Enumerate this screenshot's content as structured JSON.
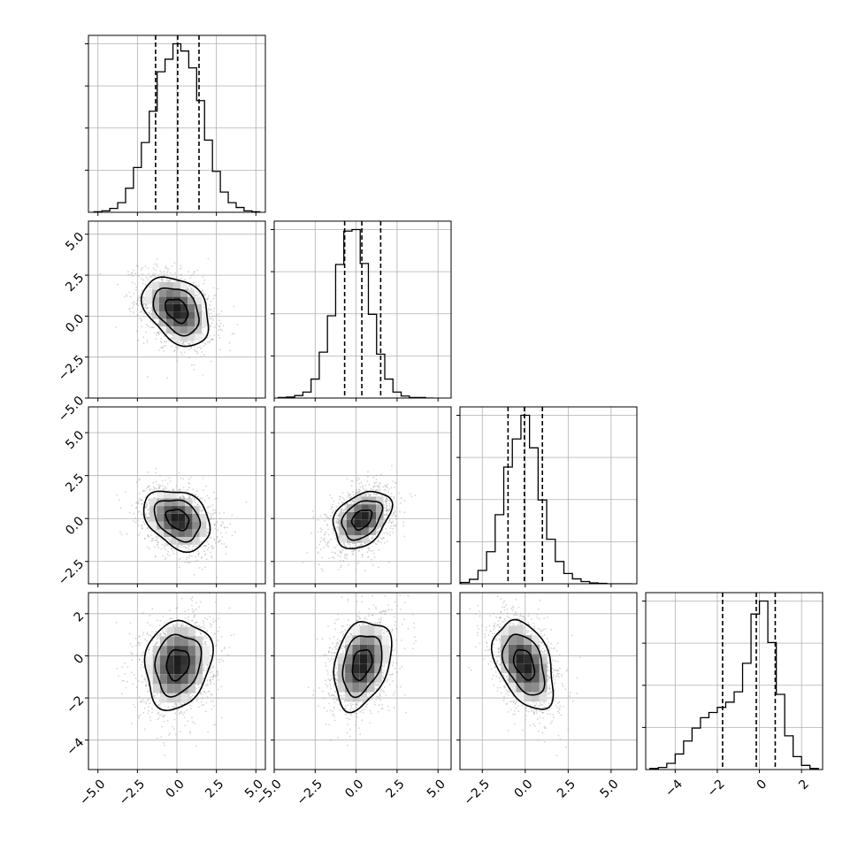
{
  "chart_data": {
    "type": "corner",
    "colors": {
      "axes": "#000000",
      "grid": "#b0b0b0",
      "scatter": "#a0a0a0",
      "density_dark": "#111111",
      "density_light": "#f2f2f2"
    },
    "grid": true,
    "quantile_lines": "dashed",
    "contour_levels": 3,
    "params": [
      {
        "range": [
          -5.6,
          5.6
        ],
        "ticks": [
          -5.0,
          -2.5,
          0.0,
          2.5,
          5.0
        ],
        "tick_labels": [
          "−5.0",
          "−2.5",
          "0.0",
          "2.5",
          "5.0"
        ],
        "quantiles": [
          -1.35,
          0.05,
          1.4
        ],
        "hist_centers": [
          -5.0,
          -4.5,
          -4.0,
          -3.5,
          -3.0,
          -2.5,
          -2.0,
          -1.5,
          -1.0,
          -0.5,
          0.0,
          0.5,
          1.0,
          1.5,
          2.0,
          2.5,
          3.0,
          3.5,
          4.0,
          4.5,
          5.0
        ],
        "hist_values": [
          1,
          3,
          8,
          20,
          50,
          93,
          145,
          210,
          292,
          318,
          350,
          335,
          300,
          232,
          150,
          85,
          42,
          20,
          10,
          3,
          1
        ]
      },
      {
        "range": [
          -5.0,
          5.8
        ],
        "ticks": [
          -5.0,
          -2.5,
          0.0,
          2.5,
          5.0
        ],
        "tick_labels": [
          "−5.0",
          "−2.5",
          "0.0",
          "2.5",
          "5.0"
        ],
        "quantiles": [
          -0.7,
          0.35,
          1.5
        ],
        "hist_centers": [
          -4.5,
          -4.0,
          -3.5,
          -3.0,
          -2.5,
          -2.0,
          -1.5,
          -1.0,
          -0.5,
          0.0,
          0.5,
          1.0,
          1.5,
          2.0,
          2.5,
          3.0,
          3.5,
          4.0,
          4.5
        ],
        "hist_values": [
          1,
          2,
          5,
          12,
          38,
          92,
          165,
          268,
          335,
          338,
          270,
          168,
          88,
          38,
          12,
          4,
          1,
          1,
          0
        ]
      },
      {
        "range": [
          -3.8,
          6.5
        ],
        "ticks": [
          -2.5,
          0.0,
          2.5,
          5.0
        ],
        "tick_labels": [
          "−2.5",
          "0.0",
          "2.5",
          "5.0"
        ],
        "quantiles": [
          -1.0,
          -0.05,
          1.0
        ],
        "hist_centers": [
          -3.5,
          -3.0,
          -2.5,
          -2.0,
          -1.5,
          -1.0,
          -0.5,
          0.0,
          0.5,
          1.0,
          1.5,
          2.0,
          2.5,
          3.0,
          3.5,
          4.0,
          4.5,
          5.0,
          5.5,
          6.0
        ],
        "hist_values": [
          3,
          10,
          30,
          72,
          155,
          262,
          325,
          378,
          305,
          188,
          100,
          50,
          23,
          11,
          5,
          2,
          1,
          0,
          0,
          0
        ]
      },
      {
        "range": [
          -5.4,
          3.0
        ],
        "ticks": [
          -4,
          -2,
          0,
          2
        ],
        "tick_labels": [
          "−4",
          "−2",
          "0",
          "2"
        ],
        "quantiles": [
          -1.75,
          -0.15,
          0.75
        ],
        "hist_centers": [
          -5.0,
          -4.6,
          -4.2,
          -3.8,
          -3.4,
          -3.0,
          -2.6,
          -2.2,
          -1.8,
          -1.4,
          -1.0,
          -0.6,
          -0.2,
          0.2,
          0.6,
          1.0,
          1.4,
          1.8,
          2.2,
          2.6
        ],
        "hist_values": [
          2,
          4,
          12,
          30,
          55,
          80,
          100,
          110,
          120,
          130,
          150,
          205,
          300,
          325,
          245,
          145,
          65,
          25,
          8,
          2
        ]
      }
    ],
    "pairs": [
      {
        "x": 0,
        "y": 1,
        "mean": [
          0.0,
          0.35
        ],
        "sd": [
          1.2,
          1.2
        ],
        "corr": -0.35,
        "peak": [
          0.0,
          0.5
        ]
      },
      {
        "x": 0,
        "y": 2,
        "mean": [
          0.05,
          -0.05
        ],
        "sd": [
          1.2,
          1.0
        ],
        "corr": -0.3,
        "peak": [
          0.3,
          -0.4
        ]
      },
      {
        "x": 1,
        "y": 2,
        "mean": [
          0.35,
          -0.05
        ],
        "sd": [
          1.0,
          0.95
        ],
        "corr": 0.35,
        "peak": [
          0.1,
          -0.3
        ]
      },
      {
        "x": 0,
        "y": 3,
        "mean": [
          0.05,
          -0.4
        ],
        "sd": [
          1.2,
          1.2
        ],
        "corr": 0.15,
        "peak": [
          0.5,
          0.25
        ]
      },
      {
        "x": 1,
        "y": 3,
        "mean": [
          0.35,
          -0.4
        ],
        "sd": [
          1.0,
          1.2
        ],
        "corr": 0.3,
        "peak": [
          0.0,
          0.3
        ]
      },
      {
        "x": 2,
        "y": 3,
        "mean": [
          -0.05,
          -0.4
        ],
        "sd": [
          1.0,
          1.2
        ],
        "corr": -0.4,
        "peak": [
          -0.3,
          0.3
        ]
      }
    ]
  }
}
